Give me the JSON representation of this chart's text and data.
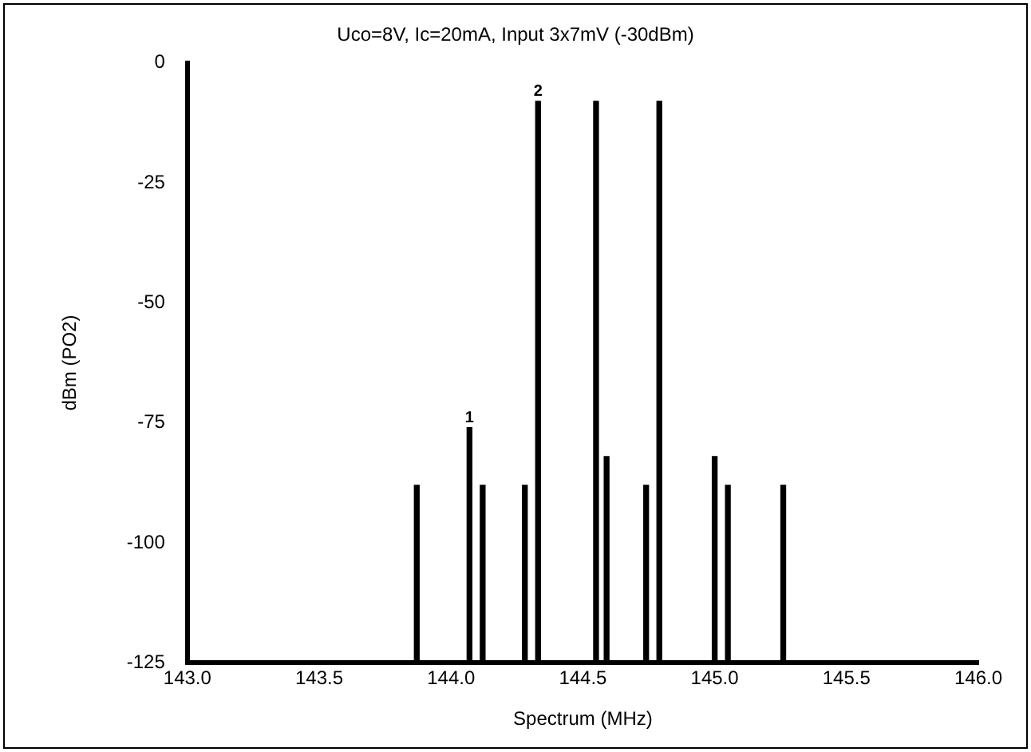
{
  "chart_data": {
    "type": "bar",
    "title": "Uco=8V, Ic=20mA, Input 3x7mV (-30dBm)",
    "xlabel": "Spectrum (MHz)",
    "ylabel": "dBm (PO2)",
    "x": [
      143.87,
      144.07,
      144.12,
      144.28,
      144.33,
      144.55,
      144.59,
      144.74,
      144.79,
      145.0,
      145.05,
      145.26
    ],
    "base": [
      -125,
      -125,
      -125,
      -125,
      -125,
      -125,
      -125,
      -125,
      -125,
      -125,
      -125,
      -125
    ],
    "values": [
      37,
      49,
      37,
      37,
      117,
      117,
      43,
      37,
      117,
      43,
      37,
      37
    ],
    "color": "#000000",
    "xlim": [
      143,
      146
    ],
    "xticks": [
      {
        "value": 143,
        "label": "143.0"
      },
      {
        "value": 143.5,
        "label": "143.5"
      },
      {
        "value": 144,
        "label": "144.0"
      },
      {
        "value": 144.5,
        "label": "144.5"
      },
      {
        "value": 145,
        "label": "145.0"
      },
      {
        "value": 145.5,
        "label": "145.5"
      },
      {
        "value": 146,
        "label": "146.0"
      }
    ],
    "ylim": [
      -125,
      0
    ],
    "yticks": [
      -125,
      -100,
      -75,
      -50,
      -25,
      0
    ],
    "annotations": [
      {
        "text": "1",
        "x": 144.07,
        "y": -76
      },
      {
        "text": "2",
        "x": 144.33,
        "y": -8
      }
    ],
    "grid": false,
    "legend": false
  }
}
